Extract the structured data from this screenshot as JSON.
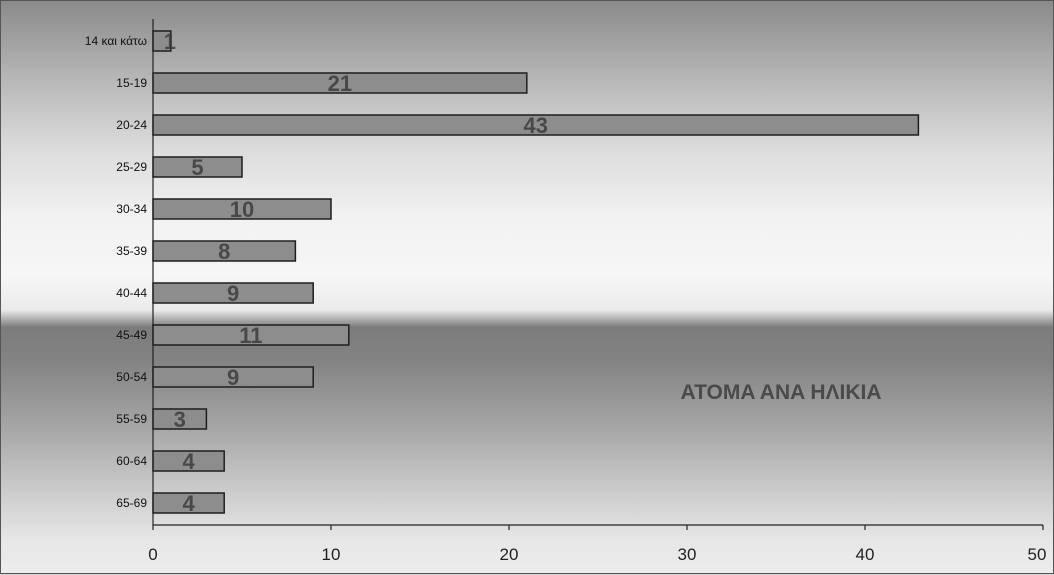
{
  "chart_data": {
    "type": "bar",
    "orientation": "horizontal",
    "title": "ATOMA ANA HΛIKIA",
    "categories": [
      "14 και κάτω",
      "15-19",
      "20-24",
      "25-29",
      "30-34",
      "35-39",
      "40-44",
      "45-49",
      "50-54",
      "55-59",
      "60-64",
      "65-69"
    ],
    "values": [
      1,
      21,
      43,
      5,
      10,
      8,
      9,
      11,
      9,
      3,
      4,
      4
    ],
    "xlim": [
      0,
      50
    ],
    "xticks": [
      0,
      10,
      20,
      30,
      40,
      50
    ],
    "xlabel": "",
    "ylabel": "",
    "grid": false,
    "legend": "none",
    "colors": {
      "bar": "#8d8d8d",
      "bar_edge": "#1e1e1e"
    }
  }
}
